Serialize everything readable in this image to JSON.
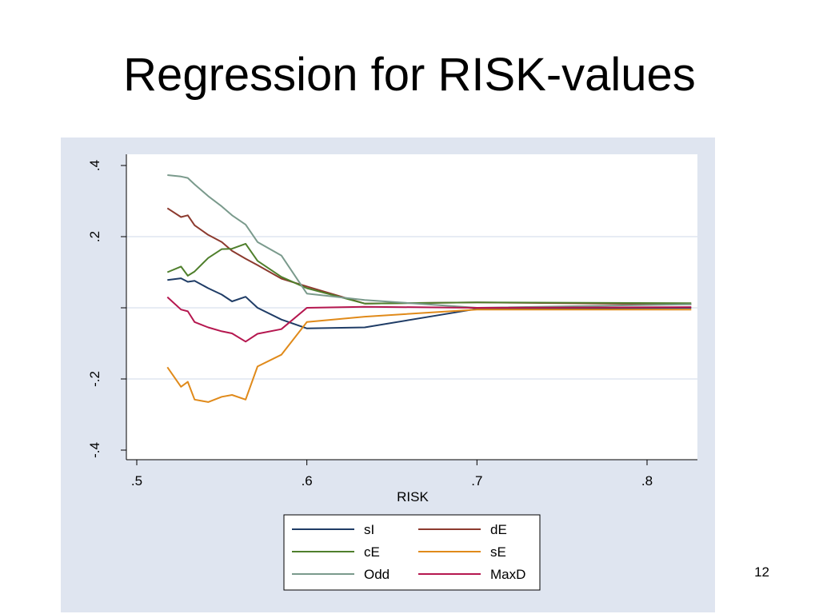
{
  "slide": {
    "title": "Regression for RISK-values",
    "page_number": "12"
  },
  "chart_data": {
    "type": "line",
    "title": "",
    "xlabel": "RISK",
    "ylabel": "",
    "xlim": [
      0.5,
      0.83
    ],
    "ylim": [
      -0.4,
      0.4
    ],
    "xticks": [
      0.5,
      0.6,
      0.7,
      0.8
    ],
    "xtick_labels": [
      ".5",
      ".6",
      ".7",
      ".8"
    ],
    "yticks": [
      -0.4,
      -0.2,
      0,
      0.2,
      0.4
    ],
    "ytick_labels": [
      "-.4",
      "-.2",
      "",
      ".2",
      ".4"
    ],
    "grid": true,
    "legend_position": "bottom",
    "series": [
      {
        "name": "sI",
        "color": "#1f3c66",
        "points": [
          [
            0.518,
            0.078
          ],
          [
            0.526,
            0.083
          ],
          [
            0.53,
            0.073
          ],
          [
            0.534,
            0.076
          ],
          [
            0.542,
            0.055
          ],
          [
            0.55,
            0.037
          ],
          [
            0.556,
            0.018
          ],
          [
            0.564,
            0.031
          ],
          [
            0.571,
            0.0
          ],
          [
            0.585,
            -0.033
          ],
          [
            0.6,
            -0.058
          ],
          [
            0.634,
            -0.055
          ],
          [
            0.7,
            -0.003
          ],
          [
            0.826,
            0.0
          ]
        ]
      },
      {
        "name": "dE",
        "color": "#8c3a2e",
        "points": [
          [
            0.518,
            0.28
          ],
          [
            0.526,
            0.255
          ],
          [
            0.53,
            0.26
          ],
          [
            0.534,
            0.232
          ],
          [
            0.542,
            0.205
          ],
          [
            0.55,
            0.185
          ],
          [
            0.556,
            0.16
          ],
          [
            0.564,
            0.138
          ],
          [
            0.571,
            0.12
          ],
          [
            0.585,
            0.082
          ],
          [
            0.6,
            0.06
          ],
          [
            0.634,
            0.012
          ],
          [
            0.7,
            0.015
          ],
          [
            0.826,
            0.01
          ]
        ]
      },
      {
        "name": "cE",
        "color": "#4f7f2c",
        "points": [
          [
            0.518,
            0.1
          ],
          [
            0.526,
            0.116
          ],
          [
            0.53,
            0.09
          ],
          [
            0.534,
            0.102
          ],
          [
            0.542,
            0.14
          ],
          [
            0.55,
            0.165
          ],
          [
            0.556,
            0.166
          ],
          [
            0.564,
            0.18
          ],
          [
            0.571,
            0.132
          ],
          [
            0.585,
            0.087
          ],
          [
            0.6,
            0.055
          ],
          [
            0.634,
            0.012
          ],
          [
            0.7,
            0.015
          ],
          [
            0.826,
            0.013
          ]
        ]
      },
      {
        "name": "sE",
        "color": "#e08a1a",
        "points": [
          [
            0.518,
            -0.167
          ],
          [
            0.526,
            -0.222
          ],
          [
            0.53,
            -0.208
          ],
          [
            0.534,
            -0.258
          ],
          [
            0.542,
            -0.265
          ],
          [
            0.55,
            -0.25
          ],
          [
            0.556,
            -0.245
          ],
          [
            0.564,
            -0.258
          ],
          [
            0.571,
            -0.165
          ],
          [
            0.585,
            -0.132
          ],
          [
            0.6,
            -0.04
          ],
          [
            0.634,
            -0.025
          ],
          [
            0.7,
            -0.005
          ],
          [
            0.826,
            -0.005
          ]
        ]
      },
      {
        "name": "Odd",
        "color": "#7a9a8c",
        "points": [
          [
            0.518,
            0.373
          ],
          [
            0.526,
            0.369
          ],
          [
            0.53,
            0.365
          ],
          [
            0.534,
            0.347
          ],
          [
            0.542,
            0.314
          ],
          [
            0.55,
            0.285
          ],
          [
            0.556,
            0.26
          ],
          [
            0.564,
            0.234
          ],
          [
            0.571,
            0.185
          ],
          [
            0.585,
            0.147
          ],
          [
            0.6,
            0.04
          ],
          [
            0.634,
            0.022
          ],
          [
            0.7,
            0.0
          ],
          [
            0.826,
            0.01
          ]
        ]
      },
      {
        "name": "MaxD",
        "color": "#b5174f",
        "points": [
          [
            0.518,
            0.03
          ],
          [
            0.526,
            -0.005
          ],
          [
            0.53,
            -0.01
          ],
          [
            0.534,
            -0.04
          ],
          [
            0.542,
            -0.055
          ],
          [
            0.55,
            -0.066
          ],
          [
            0.556,
            -0.072
          ],
          [
            0.564,
            -0.095
          ],
          [
            0.571,
            -0.073
          ],
          [
            0.585,
            -0.06
          ],
          [
            0.6,
            0.0
          ],
          [
            0.634,
            0.003
          ],
          [
            0.7,
            0.0
          ],
          [
            0.826,
            0.002
          ]
        ]
      }
    ]
  }
}
